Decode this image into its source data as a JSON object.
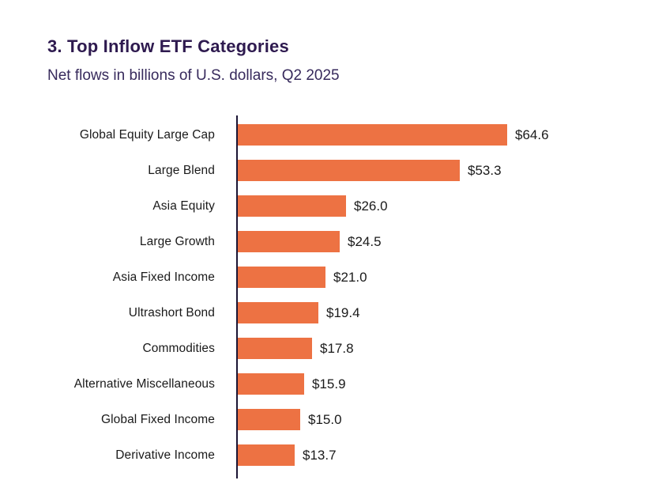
{
  "header": {
    "title": "3. Top Inflow ETF Categories",
    "subtitle": "Net flows in billions of U.S. dollars, Q2 2025"
  },
  "colors": {
    "bar": "#ED7243",
    "title": "#2E1A4F",
    "subtitle": "#372A5C",
    "axis": "#1B1534",
    "label": "#1A1A1A",
    "background": "#FFFFFF"
  },
  "chart_data": {
    "type": "bar",
    "orientation": "horizontal",
    "title": "3. Top Inflow ETF Categories",
    "subtitle": "Net flows in billions of U.S. dollars, Q2 2025",
    "categories": [
      "Global Equity Large Cap",
      "Large Blend",
      "Asia Equity",
      "Large Growth",
      "Asia Fixed Income",
      "Ultrashort Bond",
      "Commodities",
      "Alternative Miscellaneous",
      "Global Fixed Income",
      "Derivative Income"
    ],
    "values": [
      64.6,
      53.3,
      26.0,
      24.5,
      21.0,
      19.4,
      17.8,
      15.9,
      15.0,
      13.7
    ],
    "value_labels": [
      "$64.6",
      "$53.3",
      "$26.0",
      "$24.5",
      "$21.0",
      "$19.4",
      "$17.8",
      "$15.9",
      "$15.0",
      "$13.7"
    ],
    "xlim": [
      0,
      64.6
    ],
    "grid": false,
    "legend": false
  }
}
